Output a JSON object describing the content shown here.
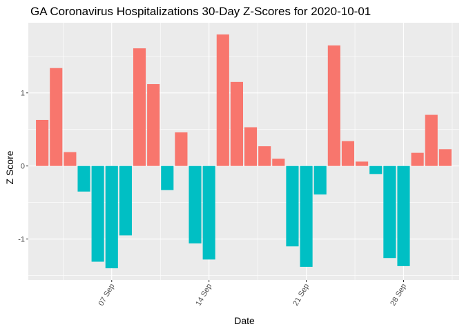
{
  "chart_data": {
    "type": "bar",
    "title": "GA Coronavirus Hospitalizations 30-Day Z-Scores for 2020-10-01",
    "xlabel": "Date",
    "ylabel": "Z Score",
    "x": [
      "2020-09-02",
      "2020-09-03",
      "2020-09-04",
      "2020-09-05",
      "2020-09-06",
      "2020-09-07",
      "2020-09-08",
      "2020-09-09",
      "2020-09-10",
      "2020-09-11",
      "2020-09-12",
      "2020-09-13",
      "2020-09-14",
      "2020-09-15",
      "2020-09-16",
      "2020-09-17",
      "2020-09-18",
      "2020-09-19",
      "2020-09-20",
      "2020-09-21",
      "2020-09-22",
      "2020-09-23",
      "2020-09-24",
      "2020-09-25",
      "2020-09-26",
      "2020-09-27",
      "2020-09-28",
      "2020-09-29",
      "2020-09-30",
      "2020-10-01"
    ],
    "values": [
      0.63,
      1.34,
      0.19,
      -0.35,
      -1.31,
      -1.4,
      -0.95,
      1.61,
      1.12,
      -0.33,
      0.46,
      -1.06,
      -1.28,
      1.8,
      1.15,
      0.53,
      0.27,
      0.1,
      -1.1,
      -1.38,
      -0.39,
      1.65,
      0.34,
      0.06,
      -0.11,
      -1.26,
      -1.37,
      0.18,
      0.7,
      0.23
    ],
    "positive_color": "#F8766D",
    "negative_color": "#00BFC4",
    "x_tick_labels": [
      "07 Sep",
      "14 Sep",
      "21 Sep",
      "28 Sep"
    ],
    "x_tick_dates": [
      "2020-09-07",
      "2020-09-14",
      "2020-09-21",
      "2020-09-28"
    ],
    "y_ticks": [
      -1,
      0,
      1
    ],
    "ylim": [
      -1.56,
      1.96
    ],
    "xlim": [
      "2020-09-01",
      "2020-10-02"
    ],
    "grid": true,
    "legend": "none",
    "panel_background": "#EBEBEB"
  }
}
